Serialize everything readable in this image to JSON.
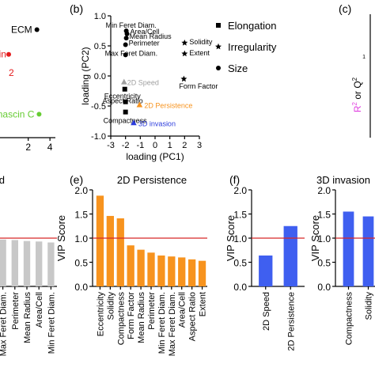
{
  "panels": {
    "b": "(b)",
    "c": "(c)",
    "e": "(e)",
    "f": "(f)"
  },
  "colors": {
    "black": "#000000",
    "red": "#e41a1c",
    "green": "#66cc33",
    "gray": "#a0a0a0",
    "orange": "#f7931e",
    "blue": "#2c3cdc",
    "pink": "#e040e0",
    "bar_gray": "#c8c8c8",
    "bar_orange": "#f7931e",
    "bar_blue": "#3f5ff0",
    "threshold": "#d62728"
  },
  "chart_data": [
    {
      "id": "a-partial",
      "type": "scatter",
      "points": [
        {
          "label": "ECM",
          "x": 2.8,
          "y": 0.75,
          "color": "#000000"
        },
        {
          "label": "ronectin",
          "x": 0.2,
          "y": 0.35,
          "color": "#e41a1c"
        },
        {
          "label": "2",
          "x": 0.2,
          "y": 0.05,
          "color": "#e41a1c"
        },
        {
          "label": "enascin C",
          "x": 3.0,
          "y": -0.62,
          "color": "#66cc33"
        }
      ],
      "xticks": [
        "2",
        "4"
      ],
      "xlim": [
        -0.6,
        4.5
      ],
      "ylim": [
        -1.0,
        1.0
      ]
    },
    {
      "id": "b",
      "type": "scatter",
      "xlabel": "loading (PC1)",
      "ylabel": "loading (PC2)",
      "xlim": [
        -3,
        3
      ],
      "ylim": [
        -1.0,
        1.0
      ],
      "xticks": [
        "-3",
        "-2",
        "-1",
        "0",
        "1",
        "2",
        "3"
      ],
      "yticks": [
        "-1.0",
        "-0.5",
        "0.0",
        "0.5",
        "1.0"
      ],
      "legend": [
        {
          "label": "Elongation",
          "marker": "square"
        },
        {
          "label": "Irregularity",
          "marker": "star"
        },
        {
          "label": "Size",
          "marker": "circle"
        }
      ],
      "points": [
        {
          "label": "Min Feret Diam.",
          "x": -1.95,
          "y": 0.75,
          "marker": "circle",
          "color": "#000000"
        },
        {
          "label": "Area/Cell",
          "x": -1.9,
          "y": 0.7,
          "marker": "circle",
          "color": "#000000"
        },
        {
          "label": "Mean Radius",
          "x": -1.95,
          "y": 0.63,
          "marker": "circle",
          "color": "#000000"
        },
        {
          "label": "Perimeter",
          "x": -2.0,
          "y": 0.52,
          "marker": "circle",
          "color": "#000000"
        },
        {
          "label": "Max Feret Diam.",
          "x": -2.0,
          "y": 0.35,
          "marker": "circle",
          "color": "#000000"
        },
        {
          "label": "Solidity",
          "x": 2.0,
          "y": 0.55,
          "marker": "star",
          "color": "#000000"
        },
        {
          "label": "Extent",
          "x": 2.0,
          "y": 0.37,
          "marker": "star",
          "color": "#000000"
        },
        {
          "label": "Form Factor",
          "x": 1.95,
          "y": -0.05,
          "marker": "star",
          "color": "#000000"
        },
        {
          "label": "2D Speed",
          "x": -2.1,
          "y": -0.1,
          "marker": "triangle",
          "color": "#a0a0a0"
        },
        {
          "label": "Eccentricity",
          "x": -2.05,
          "y": -0.22,
          "marker": "square",
          "color": "#000000"
        },
        {
          "label": "Aspect Ratio",
          "x": -2.0,
          "y": -0.43,
          "marker": "square",
          "color": "#000000"
        },
        {
          "label": "2D Persistence",
          "x": -1.05,
          "y": -0.48,
          "marker": "triangle",
          "color": "#f7931e"
        },
        {
          "label": "Compactness",
          "x": -2.0,
          "y": -0.6,
          "marker": "square",
          "color": "#000000"
        },
        {
          "label": "3D invasion",
          "x": -1.45,
          "y": -0.78,
          "marker": "triangle",
          "color": "#2c3cdc"
        }
      ]
    },
    {
      "id": "c-partial",
      "type": "bar",
      "ylabel_parts": [
        "R",
        "2",
        " or Q",
        "2"
      ],
      "tick_text": "1"
    },
    {
      "id": "d-partial",
      "type": "bar",
      "title_fragment": "d",
      "ylim": [
        0,
        2.0
      ],
      "threshold": 1.0,
      "categories": [
        "Max Feret Diam.",
        "Perimeter",
        "Mean Radius",
        "Area/Cell",
        "Min Feret Diam."
      ],
      "values": [
        0.97,
        0.96,
        0.94,
        0.93,
        0.91
      ]
    },
    {
      "id": "e",
      "type": "bar",
      "title": "2D Persistence",
      "ylabel": "VIP Score",
      "ylim": [
        0,
        2.0
      ],
      "yticks": [
        "0.0",
        "0.5",
        "1.0",
        "1.5",
        "2.0"
      ],
      "threshold": 1.0,
      "categories": [
        "Eccentricity",
        "Solidity",
        "Compactness",
        "Form Factor",
        "Mean Radius",
        "Perimeter",
        "Min Feret Diam.",
        "Max Feret Diam.",
        "Area/Cell",
        "Aspect Ratio",
        "Extent"
      ],
      "values": [
        1.88,
        1.46,
        1.41,
        0.85,
        0.76,
        0.7,
        0.64,
        0.62,
        0.6,
        0.56,
        0.53
      ]
    },
    {
      "id": "f",
      "type": "bar",
      "ylabel": "VIP Score",
      "ylim": [
        0,
        2.0
      ],
      "yticks": [
        "0.0",
        "0.5",
        "1.0",
        "1.5",
        "2.0"
      ],
      "threshold": 1.0,
      "categories": [
        "2D Speed",
        "2D Persistence"
      ],
      "values": [
        0.64,
        1.25
      ]
    },
    {
      "id": "g-partial",
      "type": "bar",
      "title": "3D invasion",
      "ylabel": "VIP Score",
      "ylim": [
        0,
        2.0
      ],
      "yticks": [
        "0.0",
        "0.5",
        "1.0",
        "1.5",
        "2.0"
      ],
      "threshold": 1.0,
      "categories": [
        "Compactness",
        "Solidity"
      ],
      "values": [
        1.55,
        1.45
      ]
    }
  ]
}
